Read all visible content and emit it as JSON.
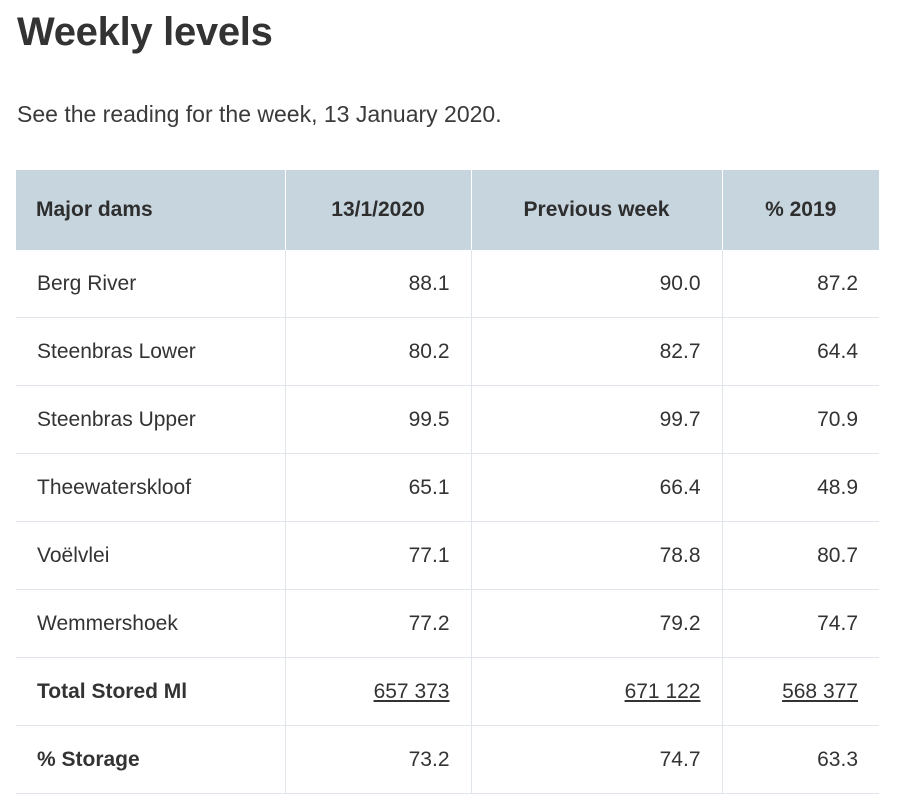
{
  "page": {
    "title": "Weekly levels",
    "intro": "See the reading for the week, 13 January 2020."
  },
  "table": {
    "headers": [
      "Major dams",
      "13/1/2020",
      "Previous week",
      "% 2019"
    ],
    "rows": [
      {
        "name": "Berg River",
        "current": "88.1",
        "previous": "90.0",
        "year2019": "87.2"
      },
      {
        "name": "Steenbras Lower",
        "current": "80.2",
        "previous": "82.7",
        "year2019": "64.4"
      },
      {
        "name": "Steenbras Upper",
        "current": "99.5",
        "previous": "99.7",
        "year2019": "70.9"
      },
      {
        "name": "Theewaterskloof",
        "current": "65.1",
        "previous": "66.4",
        "year2019": "48.9"
      },
      {
        "name": "Voëlvlei",
        "current": "77.1",
        "previous": "78.8",
        "year2019": "80.7"
      },
      {
        "name": "Wemmershoek",
        "current": "77.2",
        "previous": "79.2",
        "year2019": "74.7"
      }
    ],
    "total": {
      "name": "Total Stored Ml",
      "current": "657 373",
      "previous": "671 122",
      "year2019": "568 377"
    },
    "storage": {
      "name": "% Storage",
      "current": "73.2",
      "previous": "74.7",
      "year2019": "63.3"
    }
  }
}
